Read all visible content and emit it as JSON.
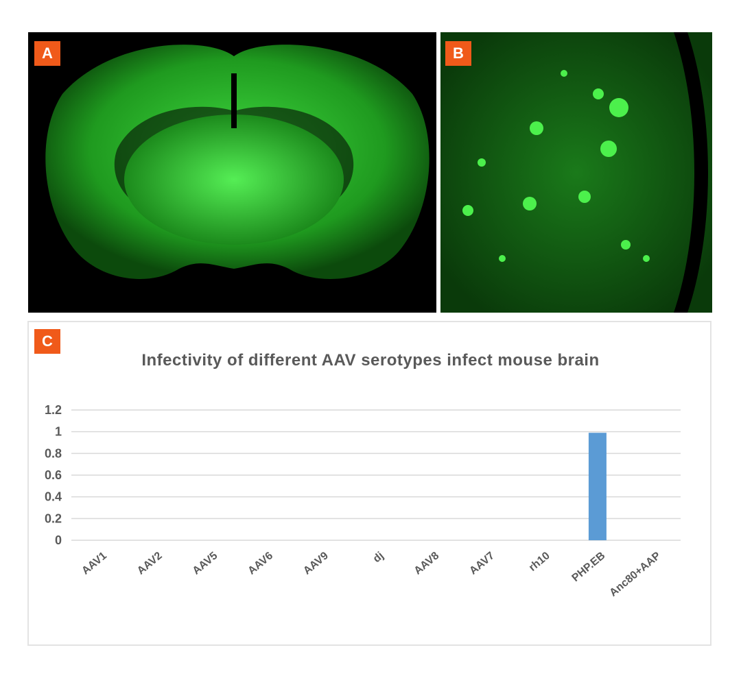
{
  "panels": {
    "a_label": "A",
    "b_label": "B",
    "c_label": "C"
  },
  "colors": {
    "label_bg": "#f05a1a",
    "bar": "#5b9bd5",
    "fluorescence": "#2bd12b"
  },
  "chart_data": {
    "type": "bar",
    "title": "Infectivity of different AAV serotypes infect mouse brain",
    "categories": [
      "AAV1",
      "AAV2",
      "AAV5",
      "AAV6",
      "AAV9",
      "dj",
      "AAV8",
      "AAV7",
      "rh10",
      "PHP.EB",
      "Anc80+AAP"
    ],
    "values": [
      0,
      0,
      0,
      0,
      0,
      0,
      0,
      0,
      0,
      0.99,
      0
    ],
    "ylim": [
      0,
      1.2
    ],
    "yticks": [
      "0",
      "0.2",
      "0.4",
      "0.6",
      "0.8",
      "1",
      "1.2"
    ],
    "grid": true,
    "xlabel": "",
    "ylabel": ""
  }
}
